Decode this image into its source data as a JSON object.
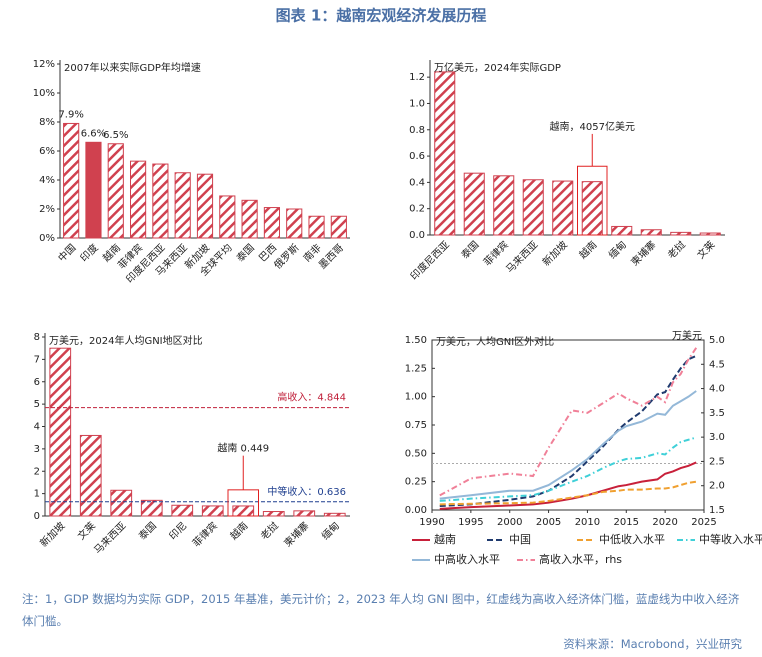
{
  "title": "图表 1：越南宏观经济发展历程",
  "note": "注：1，GDP 数据均为实际 GDP，2015 年基准，美元计价；2，2023 年人均 GNI 图中，红虚线为高收入经济体门槛，蓝虚线为中收入经济体门槛。",
  "source": "资料来源：Macrobond，兴业研究",
  "chart_data": [
    {
      "type": "bar",
      "title": "2007年以来实际GDP年均增速",
      "categories": [
        "中国",
        "印度",
        "越南",
        "菲律宾",
        "印度尼西亚",
        "马来西亚",
        "新加坡",
        "全球平均",
        "泰国",
        "巴西",
        "俄罗斯",
        "南非",
        "墨西哥"
      ],
      "values": [
        7.9,
        6.6,
        6.5,
        5.3,
        5.1,
        4.5,
        4.4,
        2.9,
        2.6,
        2.1,
        2.0,
        1.5,
        1.5
      ],
      "value_labels": [
        "7.9%",
        "6.6%",
        "6.5%",
        null,
        null,
        null,
        null,
        null,
        null,
        null,
        null,
        null,
        null
      ],
      "styles": [
        "hatch",
        "solid",
        "hatch",
        "hatch",
        "hatch",
        "hatch",
        "hatch",
        "hatch",
        "hatch",
        "hatch",
        "hatch",
        "hatch",
        "hatch"
      ],
      "color": "#d0414f",
      "ylim": [
        0,
        12
      ],
      "yticks": [
        {
          "value": 0,
          "label": "0%"
        },
        {
          "value": 2,
          "label": "2%"
        },
        {
          "value": 4,
          "label": "4%"
        },
        {
          "value": 6,
          "label": "6%"
        },
        {
          "value": 8,
          "label": "8%"
        },
        {
          "value": 10,
          "label": "10%"
        },
        {
          "value": 12,
          "label": "12%"
        }
      ]
    },
    {
      "type": "bar",
      "title": "万亿美元，2024年实际GDP",
      "categories": [
        "印度尼西亚",
        "泰国",
        "菲律宾",
        "马来西亚",
        "新加坡",
        "越南",
        "缅甸",
        "柬埔寨",
        "老挝",
        "文莱"
      ],
      "values": [
        1.24,
        0.47,
        0.45,
        0.42,
        0.41,
        0.4057,
        0.065,
        0.04,
        0.02,
        0.015
      ],
      "color": "#d0414f",
      "annotation": {
        "text": "越南，4057亿美元",
        "category": "越南"
      },
      "ylim": [
        0,
        1.3
      ],
      "yticks": [
        {
          "value": 0,
          "label": "0.0"
        },
        0.2,
        0.4,
        0.6,
        0.8,
        {
          "value": 1,
          "label": "1.0"
        },
        1.2
      ]
    },
    {
      "type": "bar",
      "title": "万美元，2024年人均GNI地区对比",
      "categories": [
        "新加坡",
        "文莱",
        "马来西亚",
        "泰国",
        "印尼",
        "菲律宾",
        "越南",
        "老挝",
        "柬埔寨",
        "缅甸"
      ],
      "values": [
        7.5,
        3.6,
        1.15,
        0.7,
        0.48,
        0.45,
        0.449,
        0.2,
        0.23,
        0.12
      ],
      "color": "#d0414f",
      "annotation": {
        "text": "越南 0.449",
        "category": "越南"
      },
      "reference_lines": [
        {
          "value": 4.844,
          "label": "高收入：4.844",
          "color": "#c0203a"
        },
        {
          "value": 0.636,
          "label": "中等收入：0.636",
          "color": "#1f3f8f"
        }
      ],
      "ylim": [
        0,
        8
      ],
      "yticks": [
        0,
        1,
        2,
        3,
        4,
        5,
        6,
        7,
        8
      ]
    },
    {
      "type": "line",
      "title": "万美元，人均GNI区外对比",
      "y2_label": "万美元",
      "x": [
        1991,
        1995,
        2000,
        2003,
        2005,
        2008,
        2010,
        2012,
        2014,
        2015,
        2017,
        2019,
        2020,
        2021,
        2022,
        2023,
        2024
      ],
      "series": [
        {
          "name": "越南",
          "color": "#c8203a",
          "dash": "solid",
          "values": [
            0.01,
            0.025,
            0.04,
            0.05,
            0.065,
            0.1,
            0.13,
            0.17,
            0.21,
            0.22,
            0.25,
            0.27,
            0.32,
            0.34,
            0.37,
            0.39,
            0.42
          ]
        },
        {
          "name": "中国",
          "color": "#1f3a6e",
          "dash": "dashed",
          "values": [
            0.035,
            0.05,
            0.09,
            0.12,
            0.17,
            0.3,
            0.43,
            0.56,
            0.71,
            0.77,
            0.87,
            1.02,
            1.04,
            1.15,
            1.25,
            1.33,
            1.36
          ]
        },
        {
          "name": "中低收入水平",
          "color": "#f0a030",
          "dash": "dashed",
          "values": [
            0.05,
            0.055,
            0.06,
            0.065,
            0.08,
            0.11,
            0.13,
            0.16,
            0.17,
            0.18,
            0.18,
            0.19,
            0.19,
            0.2,
            0.22,
            0.24,
            0.25
          ]
        },
        {
          "name": "中等收入水平",
          "color": "#40d0d8",
          "dash": "dashdot",
          "values": [
            0.08,
            0.1,
            0.12,
            0.13,
            0.17,
            0.25,
            0.3,
            0.37,
            0.43,
            0.45,
            0.46,
            0.5,
            0.49,
            0.55,
            0.6,
            0.62,
            0.64
          ]
        },
        {
          "name": "中高收入水平",
          "color": "#94b8d8",
          "dash": "solid",
          "values": [
            0.1,
            0.13,
            0.17,
            0.17,
            0.22,
            0.35,
            0.45,
            0.58,
            0.7,
            0.74,
            0.78,
            0.85,
            0.84,
            0.92,
            0.96,
            1.0,
            1.05
          ]
        },
        {
          "name": "高收入水平，rhs",
          "color": "#f08098",
          "dash": "dashdot",
          "axis": "y2",
          "values": [
            1.8,
            2.15,
            2.25,
            2.2,
            2.78,
            3.55,
            3.5,
            3.7,
            3.9,
            3.8,
            3.65,
            3.83,
            3.72,
            4.13,
            4.3,
            4.6,
            4.84
          ]
        }
      ],
      "reference_lines": [
        {
          "value": 0.41,
          "color": "#aaaaaa"
        }
      ],
      "xlim": [
        1990,
        2025
      ],
      "xticks": [
        1990,
        1995,
        2000,
        2005,
        2010,
        2015,
        2020,
        2025
      ],
      "ylim": [
        0,
        1.5
      ],
      "yticks": [
        {
          "value": 0,
          "label": "0.00"
        },
        {
          "value": 0.25,
          "label": "0.25"
        },
        {
          "value": 0.5,
          "label": "0.50"
        },
        {
          "value": 0.75,
          "label": "0.75"
        },
        {
          "value": 1,
          "label": "1.00"
        },
        {
          "value": 1.25,
          "label": "1.25"
        },
        {
          "value": 1.5,
          "label": "1.50"
        }
      ],
      "y2lim": [
        1.5,
        5.0
      ],
      "y2ticks": [
        1.5,
        {
          "value": 2,
          "label": "2.0"
        },
        2.5,
        {
          "value": 3,
          "label": "3.0"
        },
        3.5,
        {
          "value": 4,
          "label": "4.0"
        },
        4.5,
        {
          "value": 5,
          "label": "5.0"
        }
      ]
    }
  ]
}
